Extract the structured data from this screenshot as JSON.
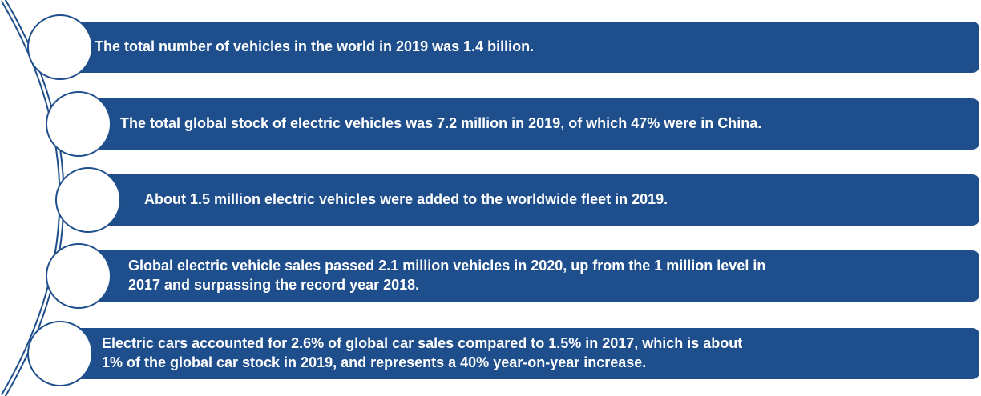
{
  "items": [
    {
      "lines": [
        "The total number of vehicles in the world in 2019 was 1.4 billion."
      ]
    },
    {
      "lines": [
        "The total global stock of electric vehicles was 7.2 million in 2019, of which 47% were in China."
      ]
    },
    {
      "lines": [
        "About 1.5 million electric vehicles were added to the worldwide fleet in 2019."
      ]
    },
    {
      "lines": [
        "Global electric vehicle sales passed 2.1 million vehicles in 2020, up from the 1 million level in",
        "2017 and surpassing the record year 2018."
      ]
    },
    {
      "lines": [
        "Electric cars accounted for 2.6% of global car sales compared to 1.5% in 2017, which is about",
        "1% of the global car stock in 2019, and represents a 40% year-on-year increase."
      ]
    }
  ]
}
